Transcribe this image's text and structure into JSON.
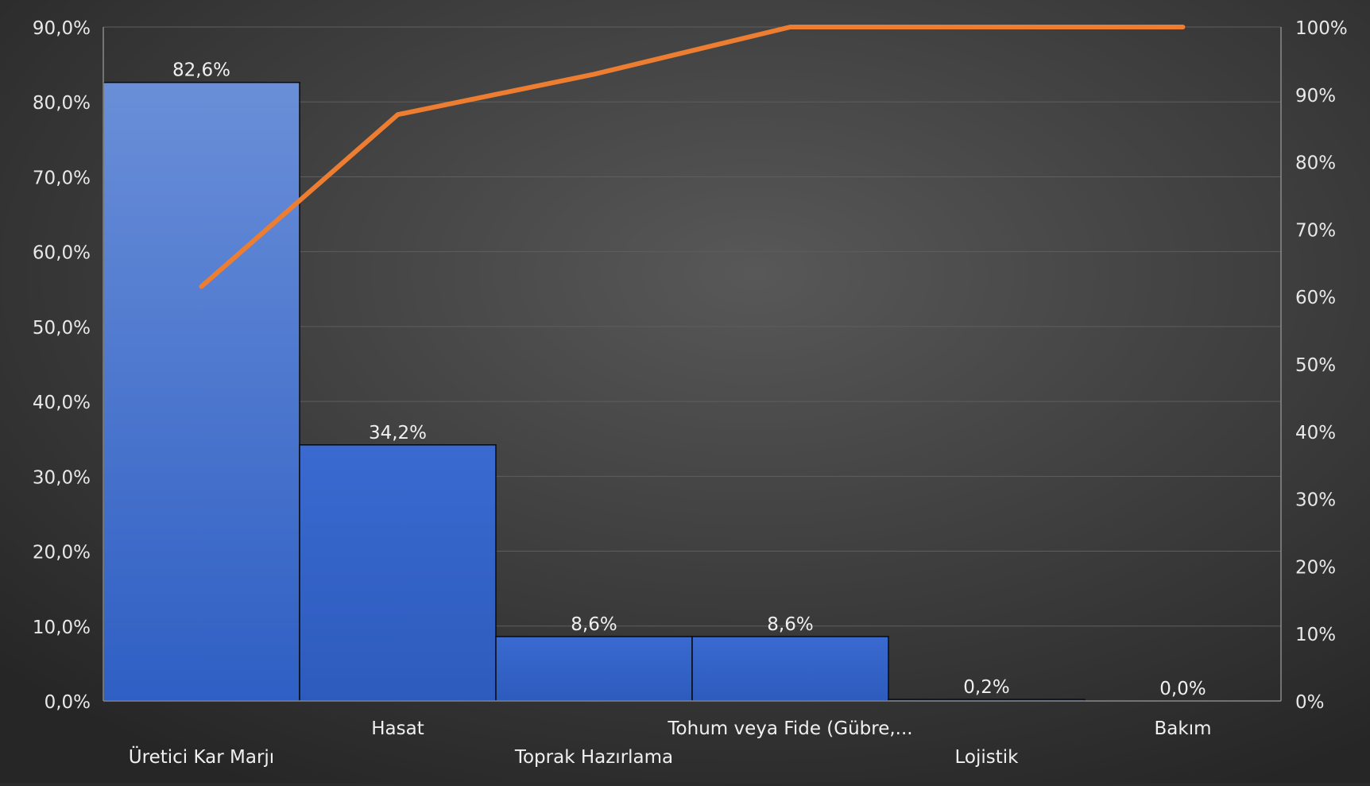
{
  "chart_data": {
    "type": "bar",
    "title": "",
    "xlabel": "",
    "ylabel": "",
    "categories": [
      "Üretici Kar Marjı",
      "Hasat",
      "Toprak Hazırlama",
      "Tohum veya Fide (Gübre,...",
      "Lojistik",
      "Bakım"
    ],
    "series": [
      {
        "type": "bar",
        "axis": "left",
        "values": [
          82.6,
          34.2,
          8.6,
          8.6,
          0.2,
          0.0
        ],
        "data_labels": [
          "82,6%",
          "34,2%",
          "8,6%",
          "8,6%",
          "0,2%",
          "0,0%"
        ],
        "color": "#3a68c8"
      },
      {
        "type": "line",
        "axis": "right",
        "values": [
          61.5,
          87.0,
          93.0,
          100.0,
          100.0,
          100.0
        ],
        "color": "#ed7d31"
      }
    ],
    "left_axis": {
      "ylim": [
        0,
        90
      ],
      "ticks": [
        0,
        10,
        20,
        30,
        40,
        50,
        60,
        70,
        80,
        90
      ],
      "tick_labels": [
        "0,0%",
        "10,0%",
        "20,0%",
        "30,0%",
        "40,0%",
        "50,0%",
        "60,0%",
        "70,0%",
        "80,0%",
        "90,0%"
      ]
    },
    "right_axis": {
      "ylim": [
        0,
        100
      ],
      "ticks": [
        0,
        10,
        20,
        30,
        40,
        50,
        60,
        70,
        80,
        90,
        100
      ],
      "tick_labels": [
        "0%",
        "10%",
        "20%",
        "30%",
        "40%",
        "50%",
        "60%",
        "70%",
        "80%",
        "90%",
        "100%"
      ]
    },
    "grid": true,
    "legend": "none"
  }
}
